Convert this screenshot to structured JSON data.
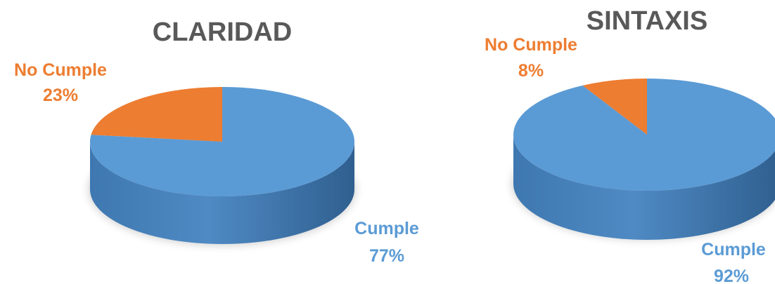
{
  "chart_data": [
    {
      "type": "pie",
      "title": "CLARIDAD",
      "slices": [
        {
          "label": "Cumple",
          "value": 77,
          "value_label": "77%",
          "color": "#5B9BD5"
        },
        {
          "label": "No Cumple",
          "value": 23,
          "value_label": "23%",
          "color": "#ED7D31"
        }
      ],
      "legend": "none",
      "style": "3d",
      "title_color": "#595959"
    },
    {
      "type": "pie",
      "title": "SINTAXIS",
      "slices": [
        {
          "label": "Cumple",
          "value": 92,
          "value_label": "92%",
          "color": "#5B9BD5"
        },
        {
          "label": "No Cumple",
          "value": 8,
          "value_label": "8%",
          "color": "#ED7D31"
        }
      ],
      "legend": "none",
      "style": "3d",
      "title_color": "#595959"
    }
  ]
}
